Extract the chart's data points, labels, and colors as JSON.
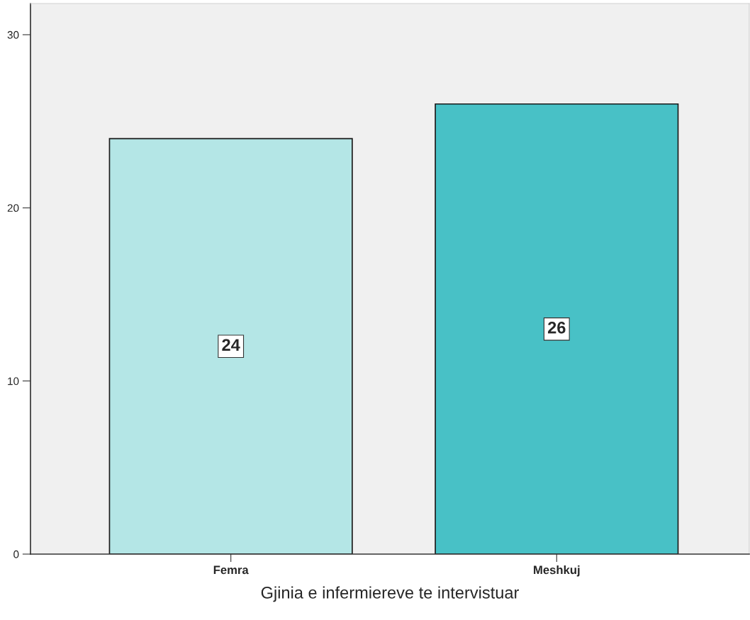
{
  "chart_data": {
    "type": "bar",
    "xlabel": "Gjinia e infermiereve te intervistuar",
    "categories": [
      "Femra",
      "Meshkuj"
    ],
    "values": [
      24,
      26
    ],
    "colors": [
      "#b4e6e6",
      "#48c1c6"
    ],
    "ylim": [
      0,
      31.8
    ],
    "yticks": [
      0,
      10,
      20,
      30
    ],
    "data_labels": true,
    "grid": false
  }
}
